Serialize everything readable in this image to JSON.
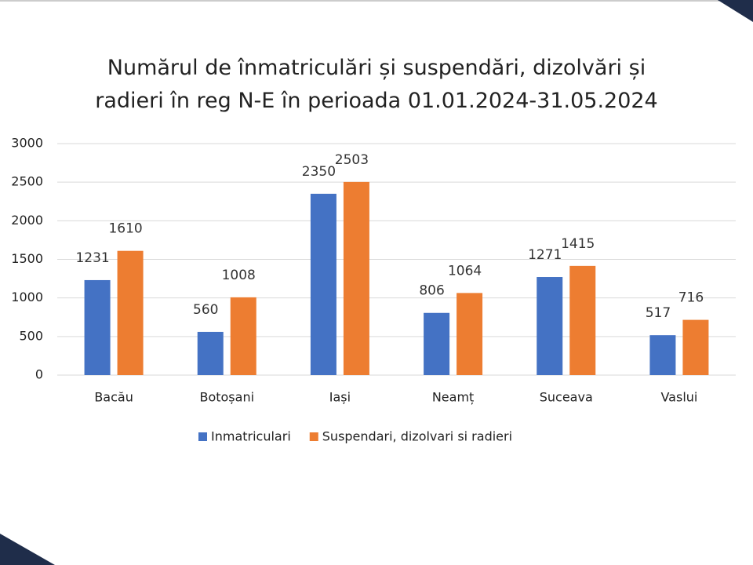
{
  "chart_data": {
    "type": "bar",
    "title": "Numărul de înmatriculări și suspendări, dizolvări și radieri în reg N-E în perioada 01.01.2024-31.05.2024",
    "categories": [
      "Bacău",
      "Botoșani",
      "Iași",
      "Neamț",
      "Suceava",
      "Vaslui"
    ],
    "series": [
      {
        "name": "Inmatriculari",
        "color": "#4472c4",
        "values": [
          1231,
          560,
          2350,
          806,
          1271,
          517
        ]
      },
      {
        "name": "Suspendari, dizolvari si radieri",
        "color": "#ed7d31",
        "values": [
          1610,
          1008,
          2503,
          1064,
          1415,
          716
        ]
      }
    ],
    "ylim": [
      0,
      3000
    ],
    "yticks": [
      0,
      500,
      1000,
      1500,
      2000,
      2500,
      3000
    ],
    "grid": true,
    "legend": "bottom"
  }
}
